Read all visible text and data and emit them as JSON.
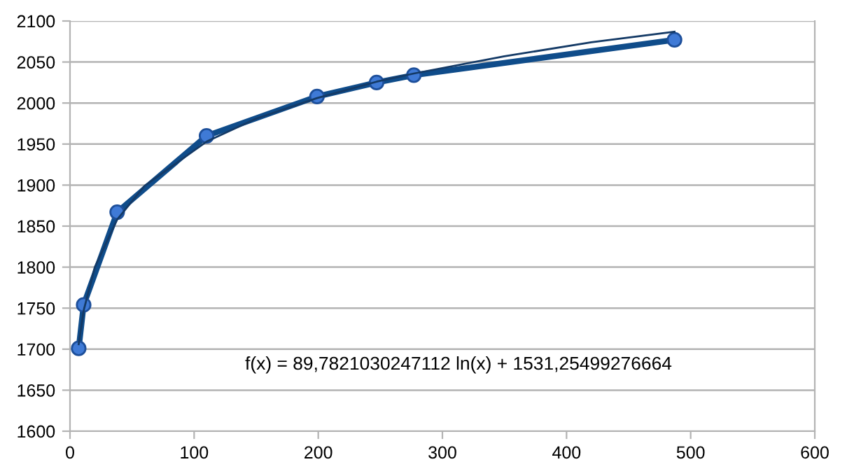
{
  "chart_data": {
    "type": "line",
    "xlim": [
      0,
      600
    ],
    "xticks": [
      0,
      100,
      200,
      300,
      400,
      500,
      600
    ],
    "ylim": [
      1600,
      2100
    ],
    "yticks": [
      1600,
      1650,
      1700,
      1750,
      1800,
      1850,
      1900,
      1950,
      2000,
      2050,
      2100
    ],
    "grid": "y",
    "marker": "circle",
    "line_style": "solid",
    "series": [
      {
        "color": "#0f4c8a",
        "x": [
          7,
          11,
          38,
          110,
          199,
          247,
          277,
          487
        ],
        "values": [
          1701,
          1754,
          1867,
          1960,
          2008,
          2025,
          2034,
          2077
        ]
      },
      {
        "type": "line",
        "marker": "none",
        "color": "#143a66",
        "x": [
          7,
          11,
          20,
          38,
          60,
          110,
          150,
          199,
          247,
          277,
          350,
          420,
          487
        ],
        "values": [
          1706,
          1747,
          1800,
          1858,
          1899,
          1953,
          1981,
          2006,
          2026,
          2036,
          2057,
          2074,
          2087
        ]
      }
    ],
    "annotations": [
      "f(x) = 89,7821030247112 ln(x) + 1531,25499276664"
    ]
  }
}
